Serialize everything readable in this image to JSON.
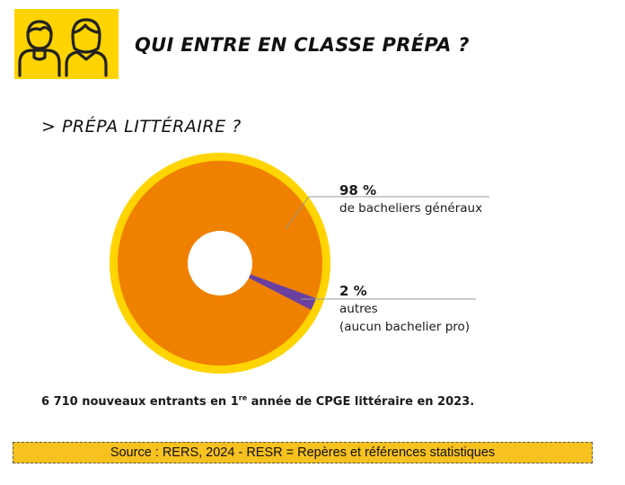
{
  "header": {
    "title": "QUI ENTRE EN CLASSE PRÉPA ?",
    "icon": "two-students-icon"
  },
  "subtitle": "> PRÉPA LITTÉRAIRE ?",
  "chart_data": {
    "type": "pie",
    "variant": "donut",
    "slices": [
      {
        "label": "de bacheliers généraux",
        "value": 98,
        "value_label": "98 %",
        "color": "#f08000"
      },
      {
        "label": "autres\n(aucun bachelier pro)",
        "value": 2,
        "value_label": "2 %",
        "color": "#6a3fa0"
      }
    ],
    "ring_color": "#ffd400"
  },
  "footnote": {
    "before": "6 710 nouveaux entrants en 1",
    "sup": "re",
    "after": " année de CPGE littéraire en 2023."
  },
  "source": "Source : RERS, 2024  - RESR = Repères et références statistiques"
}
